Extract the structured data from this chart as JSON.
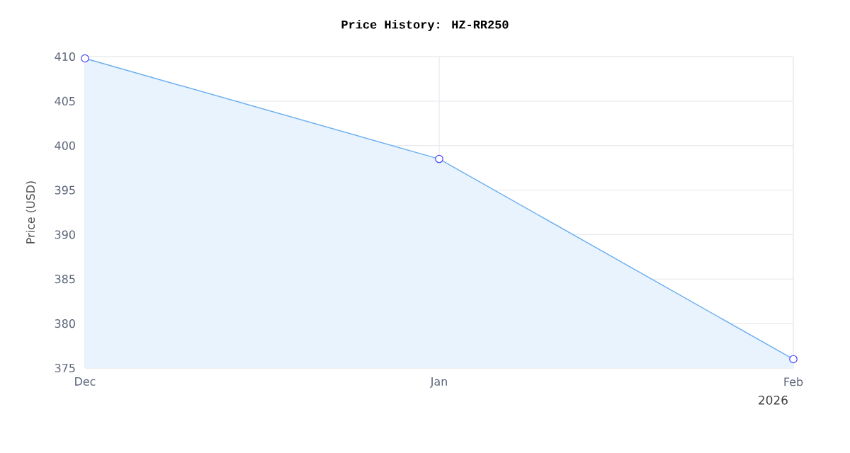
{
  "chart_data": {
    "type": "area",
    "title": "Price History: HZ-RR250",
    "ylabel": "Price (USD)",
    "categories": [
      "Dec",
      "Jan",
      "Feb"
    ],
    "annotations": [
      "2026"
    ],
    "series": [
      {
        "color": "#6aaef0",
        "values": [
          409.8,
          398.5,
          376
        ]
      }
    ],
    "ylim": [
      375,
      410
    ],
    "yticks": [
      375,
      380,
      385,
      390,
      395,
      400,
      405,
      410
    ],
    "grid": true,
    "marker": "circle"
  }
}
